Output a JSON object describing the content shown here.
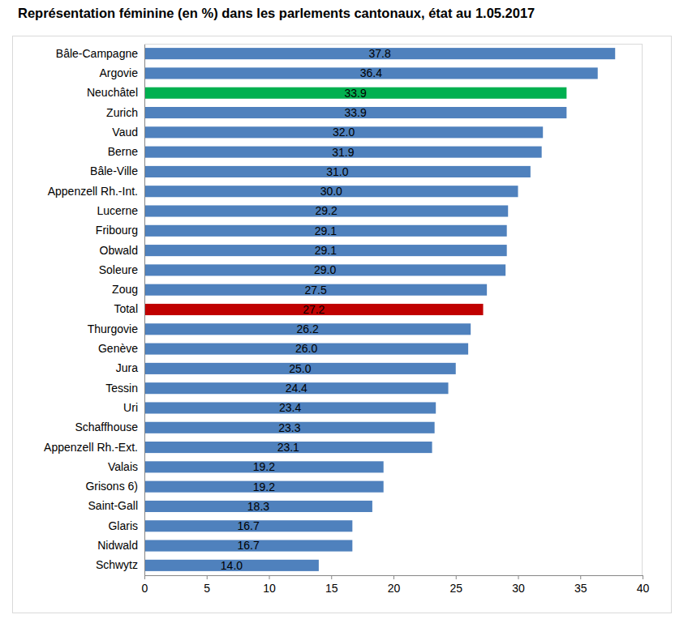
{
  "chart_data": {
    "type": "bar",
    "orientation": "horizontal",
    "title": "Représentation féminine (en %) dans les parlements cantonaux, état au 1.05.2017",
    "categories": [
      "Bâle-Campagne",
      "Argovie",
      "Neuchâtel",
      "Zurich",
      "Vaud",
      "Berne",
      "Bâle-Ville",
      "Appenzell Rh.-Int.",
      "Lucerne",
      "Fribourg",
      "Obwald",
      "Soleure",
      "Zoug",
      "Total",
      "Thurgovie",
      "Genève",
      "Jura",
      "Tessin",
      "Uri",
      "Schaffhouse",
      "Appenzell Rh.-Ext.",
      "Valais",
      "Grisons 6)",
      "Saint-Gall",
      "Glaris",
      "Nidwald",
      "Schwytz"
    ],
    "values": [
      37.8,
      36.4,
      33.9,
      33.9,
      32.0,
      31.9,
      31.0,
      30.0,
      29.2,
      29.1,
      29.1,
      29.0,
      27.5,
      27.2,
      26.2,
      26.0,
      25.0,
      24.4,
      23.4,
      23.3,
      23.1,
      19.2,
      19.2,
      18.3,
      16.7,
      16.7,
      14.0
    ],
    "value_labels": [
      "37.8",
      "36.4",
      "33.9",
      "33.9",
      "32.0",
      "31.9",
      "31.0",
      "30.0",
      "29.2",
      "29.1",
      "29.1",
      "29.0",
      "27.5",
      "27.2",
      "26.2",
      "26.0",
      "25.0",
      "24.4",
      "23.4",
      "23.3",
      "23.1",
      "19.2",
      "19.2",
      "18.3",
      "16.7",
      "16.7",
      "14.0"
    ],
    "colors": [
      "#4f81bd",
      "#4f81bd",
      "#00b050",
      "#4f81bd",
      "#4f81bd",
      "#4f81bd",
      "#4f81bd",
      "#4f81bd",
      "#4f81bd",
      "#4f81bd",
      "#4f81bd",
      "#4f81bd",
      "#4f81bd",
      "#c00000",
      "#4f81bd",
      "#4f81bd",
      "#4f81bd",
      "#4f81bd",
      "#4f81bd",
      "#4f81bd",
      "#4f81bd",
      "#4f81bd",
      "#4f81bd",
      "#4f81bd",
      "#4f81bd",
      "#4f81bd",
      "#4f81bd"
    ],
    "xlim": [
      0,
      40
    ],
    "xticks": [
      0,
      5,
      10,
      15,
      20,
      25,
      30,
      35,
      40
    ],
    "grid": false,
    "data_labels": true
  }
}
